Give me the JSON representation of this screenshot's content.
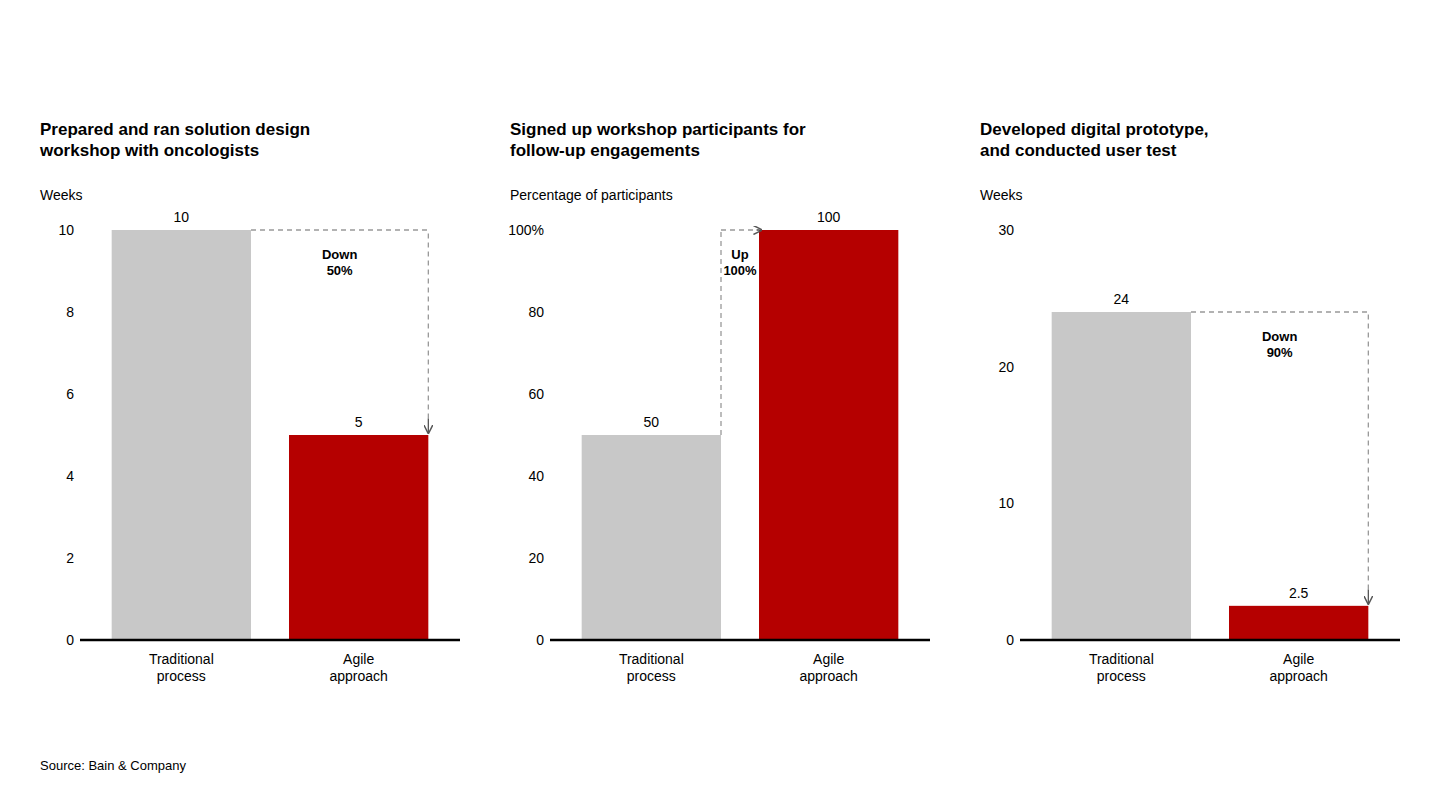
{
  "chart_data": [
    {
      "type": "bar",
      "title": "Prepared and ran solution design\nworkshop with oncologists",
      "ylabel": "Weeks",
      "categories": [
        "Traditional\nprocess",
        "Agile\napproach"
      ],
      "values": [
        10,
        5
      ],
      "colors": [
        "#c8c8c8",
        "#b50000"
      ],
      "ylim": [
        0,
        10
      ],
      "yticks": [
        0,
        2,
        4,
        6,
        8,
        10
      ],
      "annotation": "Down\n50%",
      "data_labels": true,
      "grid": false
    },
    {
      "type": "bar",
      "title": "Signed up workshop participants for\nfollow-up engagements",
      "ylabel": "Percentage of participants",
      "categories": [
        "Traditional\nprocess",
        "Agile\napproach"
      ],
      "values": [
        50,
        100
      ],
      "colors": [
        "#c8c8c8",
        "#b50000"
      ],
      "ylim": [
        0,
        100
      ],
      "yticks": [
        0,
        20,
        40,
        60,
        80,
        {
          "value": 100,
          "label": "100%"
        }
      ],
      "annotation": "Up\n100%",
      "data_labels": true,
      "grid": false
    },
    {
      "type": "bar",
      "title": "Developed digital prototype,\nand conducted user test",
      "ylabel": "Weeks",
      "categories": [
        "Traditional\nprocess",
        "Agile\napproach"
      ],
      "values": [
        24,
        2.5
      ],
      "colors": [
        "#c8c8c8",
        "#b50000"
      ],
      "ylim": [
        0,
        30
      ],
      "yticks": [
        0,
        10,
        20,
        30
      ],
      "annotation": "Down\n90%",
      "data_labels": true,
      "grid": false
    }
  ],
  "source": "Source: Bain & Company"
}
